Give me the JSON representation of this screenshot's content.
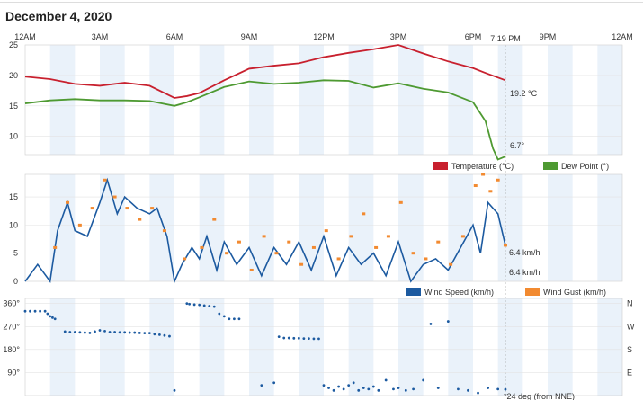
{
  "page": {
    "title": "December 4, 2020",
    "now_label": "7:19 PM"
  },
  "time_axis": [
    "12AM",
    "3AM",
    "6AM",
    "9AM",
    "12PM",
    "3PM",
    "6PM",
    "9PM",
    "12AM"
  ],
  "colors": {
    "temperature": "#c8202e",
    "dew_point": "#4e9a32",
    "wind_speed": "#1c5aa0",
    "wind_gust": "#f28a30",
    "band": "#eaf2fa"
  },
  "chart_data": [
    {
      "type": "line",
      "name": "temperature-dewpoint",
      "x_unit": "hours",
      "ylim": [
        7,
        25
      ],
      "y_ticks": [
        25,
        20,
        15,
        10
      ],
      "series": [
        {
          "name": "Temperature (°C)",
          "last_label": "19.2 °C",
          "x": [
            0,
            1,
            2,
            3,
            4,
            5,
            6,
            6.5,
            7,
            8,
            9,
            10,
            11,
            12,
            13,
            14,
            15,
            16,
            17,
            18,
            18.5,
            19.3
          ],
          "y": [
            19.8,
            19.4,
            18.6,
            18.3,
            18.8,
            18.3,
            16.3,
            16.6,
            17.1,
            19.2,
            21.1,
            21.6,
            22.0,
            23.0,
            23.7,
            24.3,
            25.0,
            23.6,
            22.3,
            21.2,
            20.4,
            19.2
          ]
        },
        {
          "name": "Dew Point (°)",
          "last_label": "6.7°",
          "x": [
            0,
            1,
            2,
            3,
            4,
            5,
            6,
            6.5,
            7,
            8,
            9,
            10,
            11,
            12,
            13,
            14,
            15,
            16,
            17,
            18,
            18.5,
            18.8,
            19,
            19.3
          ],
          "y": [
            15.4,
            15.9,
            16.1,
            15.9,
            15.9,
            15.8,
            15.0,
            15.6,
            16.4,
            18.1,
            19.0,
            18.6,
            18.8,
            19.2,
            19.1,
            18.0,
            18.7,
            17.8,
            17.2,
            15.6,
            12.5,
            8.0,
            6.2,
            6.7
          ]
        }
      ]
    },
    {
      "type": "line",
      "name": "wind",
      "x_unit": "hours",
      "ylim": [
        0,
        19
      ],
      "y_ticks": [
        15,
        10,
        5,
        0
      ],
      "series": [
        {
          "name": "Wind Speed (km/h)",
          "last_label": "6.4 km/h",
          "x": [
            0,
            0.5,
            1,
            1.3,
            1.7,
            2,
            2.5,
            3,
            3.3,
            3.7,
            4,
            4.5,
            5,
            5.3,
            5.7,
            6,
            6.3,
            6.7,
            7,
            7.3,
            7.7,
            8,
            8.5,
            9,
            9.5,
            10,
            10.5,
            11,
            11.5,
            12,
            12.5,
            13,
            13.5,
            14,
            14.5,
            15,
            15.5,
            16,
            16.5,
            17,
            17.5,
            18,
            18.3,
            18.6,
            19,
            19.3
          ],
          "y": [
            0,
            3,
            0,
            9,
            14,
            9,
            8,
            14,
            18,
            12,
            15,
            13,
            12,
            13,
            8,
            0,
            3,
            6,
            4,
            8,
            2,
            7,
            3,
            6,
            1,
            6,
            3,
            7,
            2,
            8,
            1,
            6,
            3,
            5,
            1,
            7,
            0,
            3,
            4,
            2,
            6,
            10,
            5,
            14,
            12,
            6.4
          ]
        },
        {
          "name": "Wind Gust (km/h)",
          "last_label": "6.4 km/h",
          "x": [
            1.2,
            1.7,
            2.2,
            2.7,
            3.2,
            3.6,
            4.1,
            4.6,
            5.1,
            5.6,
            6.4,
            7.1,
            7.6,
            8.1,
            8.6,
            9.1,
            9.6,
            10.1,
            10.6,
            11.1,
            11.6,
            12.1,
            12.6,
            13.1,
            13.6,
            14.1,
            14.6,
            15.1,
            15.6,
            16.1,
            16.6,
            17.1,
            17.6,
            18.1,
            18.4,
            18.7,
            19.0,
            19.3
          ],
          "y": [
            6,
            14,
            10,
            13,
            18,
            15,
            13,
            11,
            13,
            9,
            4,
            6,
            11,
            5,
            7,
            2,
            8,
            5,
            7,
            3,
            6,
            9,
            4,
            8,
            12,
            6,
            8,
            14,
            5,
            4,
            7,
            3,
            8,
            17,
            19,
            16,
            18,
            6.4
          ]
        }
      ]
    },
    {
      "type": "scatter",
      "name": "wind-direction",
      "x_unit": "hours",
      "ylim": [
        0,
        380
      ],
      "y_ticks_left": [
        "360°",
        "270°",
        "180°",
        "90°"
      ],
      "y_ticks_right": [
        "N",
        "W",
        "S",
        "E"
      ],
      "last_label": "*24 deg (from NNE)",
      "series": [
        {
          "name": "Wind Direction",
          "x": [
            0,
            0.2,
            0.4,
            0.6,
            0.8,
            0.9,
            1.0,
            1.1,
            1.2,
            1.6,
            1.8,
            2.0,
            2.2,
            2.4,
            2.6,
            2.8,
            3.0,
            3.2,
            3.4,
            3.6,
            3.8,
            4.0,
            4.2,
            4.4,
            4.6,
            4.8,
            5.0,
            5.2,
            5.4,
            5.6,
            5.8,
            6.0,
            6.5,
            6.6,
            6.8,
            7.0,
            7.2,
            7.4,
            7.6,
            7.8,
            8.0,
            8.2,
            8.4,
            8.6,
            9.5,
            10.0,
            10.2,
            10.4,
            10.6,
            10.8,
            11.0,
            11.2,
            11.4,
            11.6,
            11.8,
            12.0,
            12.2,
            12.4,
            12.6,
            12.8,
            13.0,
            13.2,
            13.4,
            13.6,
            13.8,
            14.0,
            14.2,
            14.5,
            14.8,
            15.0,
            15.3,
            15.6,
            16.0,
            16.3,
            16.6,
            17.0,
            17.4,
            17.8,
            18.2,
            18.6,
            19.0,
            19.3
          ],
          "y": [
            330,
            330,
            330,
            330,
            330,
            320,
            310,
            305,
            300,
            250,
            248,
            248,
            247,
            246,
            245,
            250,
            255,
            252,
            248,
            248,
            247,
            247,
            246,
            246,
            245,
            244,
            244,
            240,
            238,
            235,
            232,
            20,
            360,
            358,
            356,
            355,
            352,
            350,
            348,
            320,
            310,
            300,
            300,
            300,
            40,
            50,
            230,
            225,
            225,
            224,
            224,
            223,
            223,
            222,
            222,
            40,
            30,
            20,
            35,
            25,
            40,
            50,
            20,
            30,
            25,
            35,
            20,
            60,
            25,
            30,
            20,
            25,
            60,
            280,
            30,
            290,
            25,
            20,
            10,
            30,
            25,
            24
          ]
        }
      ]
    }
  ]
}
